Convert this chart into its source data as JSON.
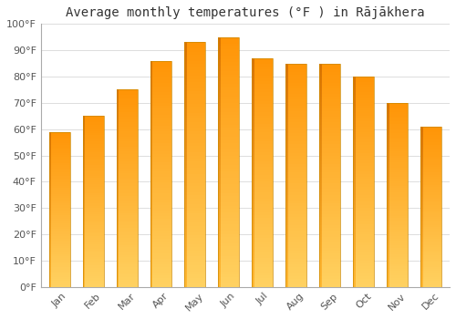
{
  "title": "Average monthly temperatures (°F ) in Rājākhera",
  "months": [
    "Jan",
    "Feb",
    "Mar",
    "Apr",
    "May",
    "Jun",
    "Jul",
    "Aug",
    "Sep",
    "Oct",
    "Nov",
    "Dec"
  ],
  "values": [
    59,
    65,
    75,
    86,
    93,
    95,
    87,
    85,
    85,
    80,
    70,
    61
  ],
  "bar_color_main": "#FFA500",
  "bar_color_light": "#FFD070",
  "bar_color_lighter": "#FFE090",
  "ylim": [
    0,
    100
  ],
  "yticks": [
    0,
    10,
    20,
    30,
    40,
    50,
    60,
    70,
    80,
    90,
    100
  ],
  "ytick_labels": [
    "0°F",
    "10°F",
    "20°F",
    "30°F",
    "40°F",
    "50°F",
    "60°F",
    "70°F",
    "80°F",
    "90°F",
    "100°F"
  ],
  "background_color": "#ffffff",
  "grid_color": "#dddddd",
  "title_fontsize": 10,
  "tick_fontsize": 8,
  "figsize": [
    5.0,
    3.5
  ],
  "dpi": 100
}
